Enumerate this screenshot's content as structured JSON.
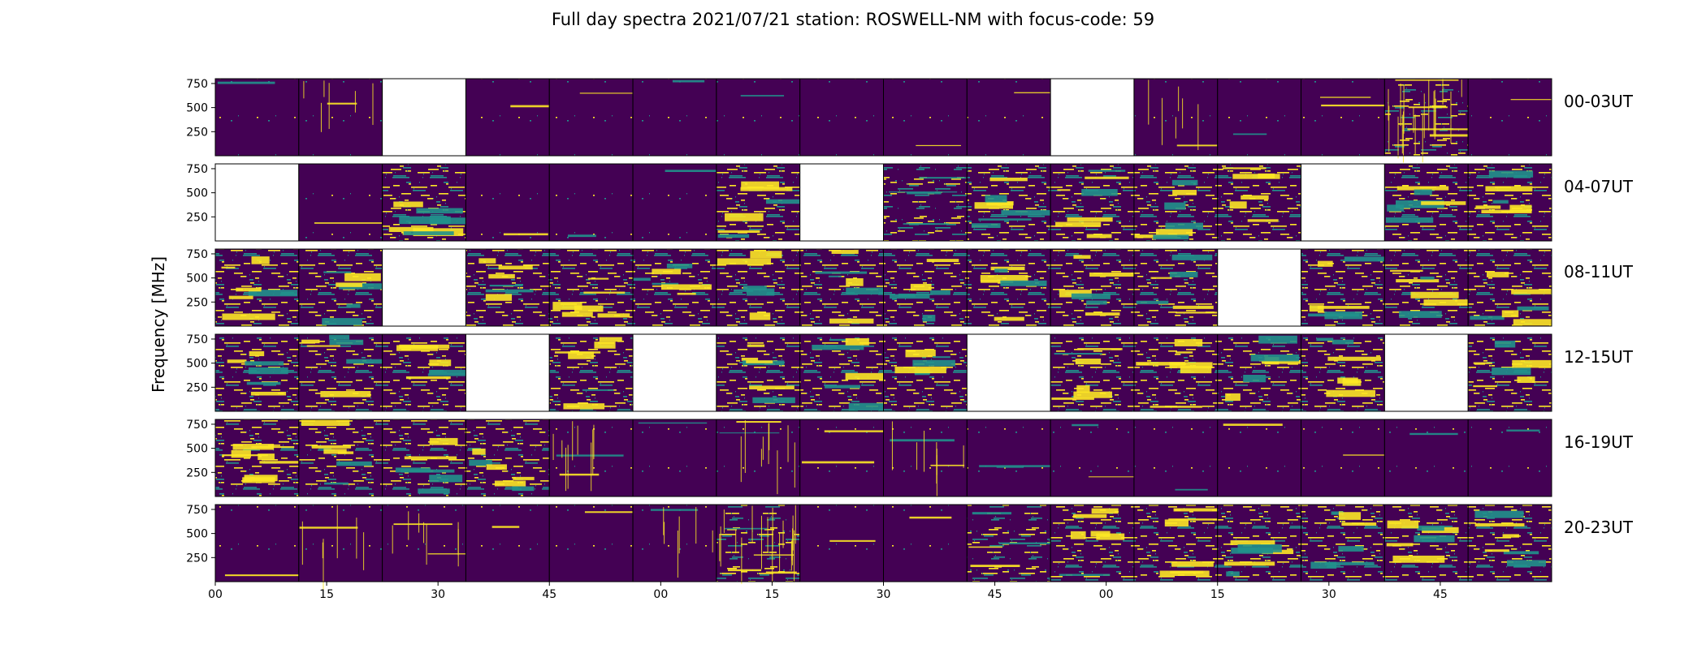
{
  "chart_data": {
    "type": "heatmap",
    "title": "Full day spectra 2021/07/21 station: ROSWELL-NM with focus-code: 59",
    "ylabel": "Frequency [MHz]",
    "xlabel": "",
    "y_ticks": [
      250,
      500,
      750
    ],
    "ylim": [
      0,
      800
    ],
    "x_ticks": [
      "00",
      "15",
      "30",
      "45",
      "00",
      "15",
      "30",
      "45",
      "00",
      "15",
      "30",
      "45"
    ],
    "minutes_per_panel": 15,
    "panels_per_row": 16,
    "colormap": "viridis",
    "colors": {
      "low": "#440154",
      "mid": "#21918c",
      "high": "#fde725",
      "missing": "#ffffff"
    },
    "rows": [
      {
        "label": "00-03UT",
        "activity": [
          0.06,
          0.1,
          null,
          0.05,
          0.05,
          0.04,
          0.05,
          0.03,
          0.04,
          0.1,
          null,
          0.1,
          0.1,
          0.15,
          0.3,
          0.08
        ]
      },
      {
        "label": "04-07UT",
        "activity": [
          null,
          0.07,
          0.55,
          0.05,
          0.05,
          0.05,
          0.4,
          null,
          0.35,
          0.5,
          0.5,
          0.5,
          0.4,
          null,
          0.4,
          0.45
        ]
      },
      {
        "label": "08-11UT",
        "activity": [
          0.45,
          0.4,
          null,
          0.45,
          0.45,
          0.4,
          0.4,
          0.4,
          0.45,
          0.4,
          0.45,
          0.4,
          null,
          0.4,
          0.4,
          0.4
        ]
      },
      {
        "label": "12-15UT",
        "activity": [
          0.4,
          0.4,
          0.4,
          null,
          0.4,
          null,
          0.45,
          0.45,
          0.45,
          null,
          0.45,
          0.45,
          0.45,
          0.45,
          null,
          0.45
        ]
      },
      {
        "label": "16-19UT",
        "activity": [
          0.55,
          0.4,
          0.4,
          0.4,
          0.15,
          0.06,
          0.15,
          0.12,
          0.12,
          0.12,
          0.12,
          0.08,
          0.06,
          0.06,
          0.06,
          0.06
        ]
      },
      {
        "label": "20-23UT",
        "activity": [
          0.06,
          0.1,
          0.12,
          0.05,
          0.05,
          0.1,
          0.3,
          0.05,
          0.05,
          0.3,
          0.4,
          0.4,
          0.4,
          0.4,
          0.4,
          0.4
        ]
      }
    ]
  }
}
